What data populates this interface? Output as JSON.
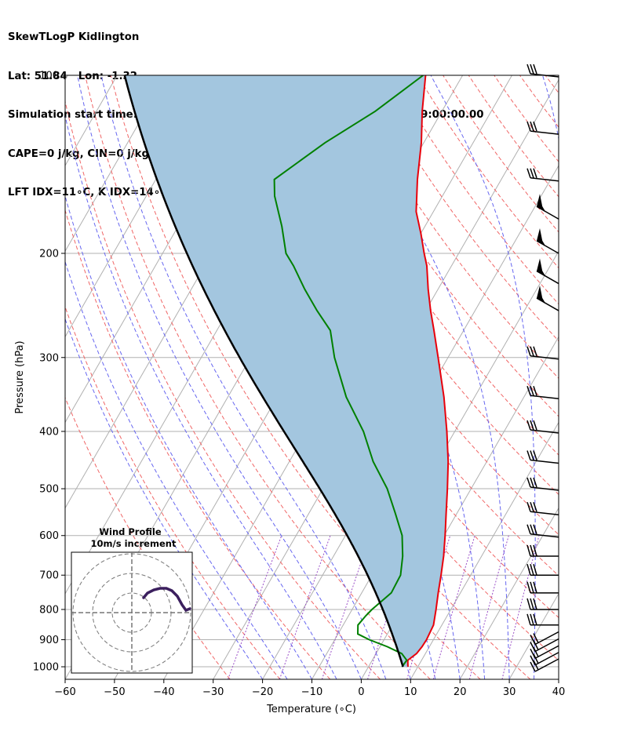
{
  "header": {
    "title": "SkewTLogP Kidlington",
    "location": "Lat: 51.84   Lon: -1.32",
    "times": "Simulation start time: 2024-01-21_00:00:00, Valid time: 2024-01-21T09:00:00.00",
    "indices1": "CAPE=0 j/kg, CIN=0 j/kg, LCL=990 hPa, LFC=nan hPa, EQ=nan hPa",
    "indices2": "LFT IDX=11∘C, K IDX=14∘C, TOTAL TOTS=38∘C, SHWTR_IDX=10∘C"
  },
  "chart_data": {
    "type": "line",
    "xlabel": "Temperature (∘C)",
    "ylabel": "Pressure (hPa)",
    "xlim": [
      -60,
      40
    ],
    "ylim": [
      1050,
      100
    ],
    "y_scale": "log",
    "x_ticks": [
      -60,
      -50,
      -40,
      -30,
      -20,
      -10,
      0,
      10,
      20,
      30,
      40
    ],
    "y_ticks": [
      100,
      200,
      300,
      400,
      500,
      600,
      700,
      800,
      900,
      1000
    ],
    "grid": true,
    "colors": {
      "temperature": "#e8000b",
      "dewpoint": "#008000",
      "parcel": "#000000",
      "fill": "#a3c6df",
      "isotherm": "#b0b0b0",
      "dry_adiabat": "#f06666",
      "moist_adiabat": "#6666f0",
      "mixing_ratio": "#9b4fc8"
    },
    "temperature_profile": [
      [
        1000,
        8
      ],
      [
        975,
        7.2
      ],
      [
        950,
        8.2
      ],
      [
        925,
        8.5
      ],
      [
        900,
        8.6
      ],
      [
        850,
        8.3
      ],
      [
        800,
        7.0
      ],
      [
        750,
        5.5
      ],
      [
        700,
        4.0
      ],
      [
        650,
        2.3
      ],
      [
        600,
        0.2
      ],
      [
        550,
        -2.2
      ],
      [
        500,
        -4.8
      ],
      [
        450,
        -7.8
      ],
      [
        400,
        -11.6
      ],
      [
        350,
        -16.2
      ],
      [
        300,
        -22.0
      ],
      [
        270,
        -26.0
      ],
      [
        250,
        -29.0
      ],
      [
        230,
        -32.0
      ],
      [
        210,
        -35.0
      ],
      [
        200,
        -37.0
      ],
      [
        185,
        -40.0
      ],
      [
        170,
        -43.5
      ],
      [
        150,
        -47.0
      ],
      [
        130,
        -50.5
      ],
      [
        115,
        -54.0
      ],
      [
        100,
        -57.5
      ]
    ],
    "dewpoint_profile": [
      [
        1000,
        6.8
      ],
      [
        975,
        7.0
      ],
      [
        950,
        5.2
      ],
      [
        925,
        1.5
      ],
      [
        900,
        -3.0
      ],
      [
        880,
        -6.0
      ],
      [
        850,
        -7.0
      ],
      [
        820,
        -6.5
      ],
      [
        800,
        -6.0
      ],
      [
        750,
        -4.0
      ],
      [
        700,
        -4.2
      ],
      [
        650,
        -6.0
      ],
      [
        600,
        -8.5
      ],
      [
        550,
        -12.5
      ],
      [
        500,
        -17.0
      ],
      [
        450,
        -23.0
      ],
      [
        400,
        -28.5
      ],
      [
        350,
        -36.0
      ],
      [
        300,
        -43.0
      ],
      [
        270,
        -47.0
      ],
      [
        250,
        -52.0
      ],
      [
        230,
        -57.0
      ],
      [
        210,
        -62.0
      ],
      [
        200,
        -65.0
      ],
      [
        180,
        -69.0
      ],
      [
        160,
        -74.0
      ],
      [
        150,
        -76.0
      ],
      [
        130,
        -70.0
      ],
      [
        115,
        -63.5
      ],
      [
        100,
        -58.0
      ]
    ],
    "parcel_profile_surface": [
      1000,
      7.0
    ],
    "wind_barbs_hpa": [
      1000,
      975,
      950,
      925,
      900,
      850,
      800,
      750,
      700,
      650,
      600,
      550,
      500,
      450,
      400,
      350,
      300,
      250,
      225,
      200,
      175,
      150,
      125,
      100
    ],
    "hodograph": {
      "title": "Wind Profile",
      "subtitle": "10m/s increment"
    }
  }
}
